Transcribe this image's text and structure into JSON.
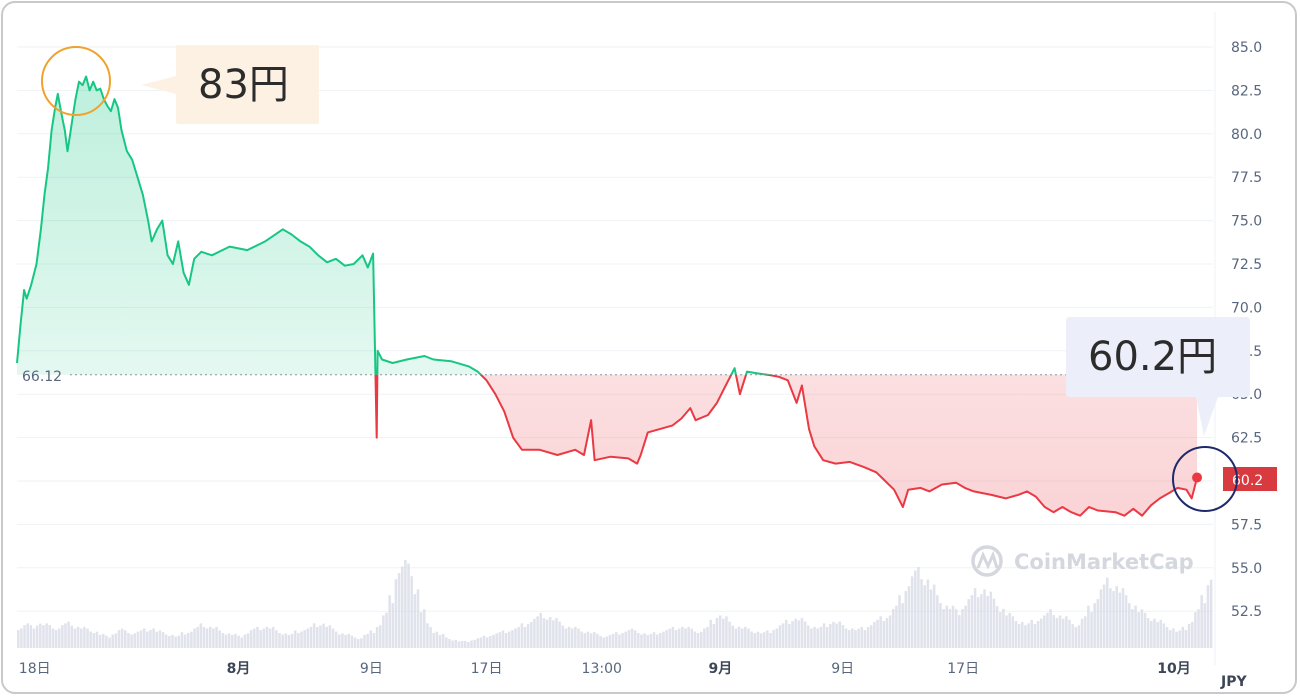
{
  "chart_data": {
    "type": "line",
    "unit_label": "JPY",
    "baseline": 66.12,
    "baseline_label": "66.12",
    "current_value": 60.2,
    "current_value_label": "60.2",
    "y_ticks": [
      "85.0",
      "82.5",
      "80.0",
      "77.5",
      "75.0",
      "72.5",
      "70.0",
      "67.5",
      "65.0",
      "62.5",
      "60.0",
      "57.5",
      "55.0",
      "52.5"
    ],
    "y_tick_values": [
      85.0,
      82.5,
      80.0,
      77.5,
      75.0,
      72.5,
      70.0,
      67.5,
      65.0,
      62.5,
      60.0,
      57.5,
      55.0,
      52.5
    ],
    "ylim": [
      50.5,
      86.5
    ],
    "x_ticks": [
      {
        "label": "18日",
        "bold": false
      },
      {
        "label": "8月",
        "bold": true
      },
      {
        "label": "9日",
        "bold": false
      },
      {
        "label": "17日",
        "bold": false
      },
      {
        "label": "13:00",
        "bold": false
      },
      {
        "label": "9月",
        "bold": true
      },
      {
        "label": "9日",
        "bold": false
      },
      {
        "label": "17日",
        "bold": false
      },
      {
        "label": "10月",
        "bold": true
      }
    ],
    "series": [
      {
        "values": [
          [
            0,
            66.8
          ],
          [
            0.2,
            69.0
          ],
          [
            0.4,
            71.0
          ],
          [
            0.55,
            70.5
          ],
          [
            0.8,
            71.3
          ],
          [
            1.1,
            72.5
          ],
          [
            1.35,
            74.5
          ],
          [
            1.55,
            76.5
          ],
          [
            1.75,
            78.0
          ],
          [
            1.95,
            80.2
          ],
          [
            2.15,
            81.5
          ],
          [
            2.3,
            82.3
          ],
          [
            2.5,
            81.2
          ],
          [
            2.7,
            80.2
          ],
          [
            2.85,
            79.0
          ],
          [
            3.0,
            80.0
          ],
          [
            3.15,
            81.0
          ],
          [
            3.3,
            82.0
          ],
          [
            3.5,
            83.0
          ],
          [
            3.7,
            82.8
          ],
          [
            3.9,
            83.3
          ],
          [
            4.1,
            82.5
          ],
          [
            4.3,
            83.0
          ],
          [
            4.5,
            82.5
          ],
          [
            4.7,
            82.6
          ],
          [
            4.9,
            82.0
          ],
          [
            5.1,
            81.6
          ],
          [
            5.3,
            81.3
          ],
          [
            5.5,
            82.0
          ],
          [
            5.7,
            81.5
          ],
          [
            5.9,
            80.2
          ],
          [
            6.2,
            79.0
          ],
          [
            6.5,
            78.5
          ],
          [
            6.8,
            77.5
          ],
          [
            7.1,
            76.5
          ],
          [
            7.4,
            75.0
          ],
          [
            7.6,
            73.8
          ],
          [
            7.9,
            74.5
          ],
          [
            8.2,
            75.0
          ],
          [
            8.5,
            73.0
          ],
          [
            8.8,
            72.5
          ],
          [
            9.1,
            73.8
          ],
          [
            9.4,
            72.0
          ],
          [
            9.7,
            71.3
          ],
          [
            10.0,
            72.8
          ],
          [
            10.4,
            73.2
          ],
          [
            11.0,
            73.0
          ],
          [
            12.0,
            73.5
          ],
          [
            13.0,
            73.3
          ],
          [
            14.0,
            73.8
          ],
          [
            15.0,
            74.5
          ],
          [
            15.5,
            74.2
          ],
          [
            16.0,
            73.8
          ],
          [
            16.5,
            73.5
          ],
          [
            17.0,
            73.0
          ],
          [
            17.5,
            72.6
          ],
          [
            18.0,
            72.8
          ],
          [
            18.5,
            72.4
          ],
          [
            19.0,
            72.5
          ],
          [
            19.5,
            73.0
          ],
          [
            19.8,
            72.3
          ],
          [
            20.1,
            73.1
          ],
          [
            20.3,
            62.5
          ],
          [
            20.35,
            67.5
          ],
          [
            20.6,
            67.0
          ],
          [
            21.2,
            66.8
          ],
          [
            22.0,
            67.0
          ],
          [
            23.0,
            67.2
          ],
          [
            23.5,
            67.0
          ],
          [
            24.5,
            66.9
          ],
          [
            25.5,
            66.6
          ],
          [
            26.0,
            66.3
          ],
          [
            26.5,
            65.8
          ],
          [
            27.0,
            65.0
          ],
          [
            27.5,
            64.0
          ],
          [
            28.0,
            62.5
          ],
          [
            28.5,
            61.8
          ],
          [
            29.5,
            61.8
          ],
          [
            30.5,
            61.5
          ],
          [
            31.5,
            61.8
          ],
          [
            32.0,
            61.5
          ],
          [
            32.4,
            63.5
          ],
          [
            32.6,
            61.2
          ],
          [
            33.5,
            61.4
          ],
          [
            34.5,
            61.3
          ],
          [
            35.0,
            61.0
          ],
          [
            35.2,
            61.5
          ],
          [
            35.6,
            62.8
          ],
          [
            36.3,
            63.0
          ],
          [
            37.0,
            63.2
          ],
          [
            37.5,
            63.6
          ],
          [
            38.0,
            64.2
          ],
          [
            38.3,
            63.5
          ],
          [
            39.0,
            63.8
          ],
          [
            39.5,
            64.5
          ],
          [
            40.0,
            65.5
          ],
          [
            40.5,
            66.5
          ],
          [
            40.8,
            65.0
          ],
          [
            41.2,
            66.3
          ],
          [
            41.8,
            66.2
          ],
          [
            42.5,
            66.1
          ],
          [
            43.0,
            66.0
          ],
          [
            43.5,
            65.8
          ],
          [
            44.0,
            64.5
          ],
          [
            44.3,
            65.5
          ],
          [
            44.7,
            63.0
          ],
          [
            45.0,
            62.0
          ],
          [
            45.5,
            61.2
          ],
          [
            46.2,
            61.0
          ],
          [
            47.0,
            61.1
          ],
          [
            47.8,
            60.8
          ],
          [
            48.5,
            60.5
          ],
          [
            49.0,
            60.0
          ],
          [
            49.5,
            59.5
          ],
          [
            50.0,
            58.5
          ],
          [
            50.3,
            59.5
          ],
          [
            51.0,
            59.6
          ],
          [
            51.5,
            59.4
          ],
          [
            52.2,
            59.8
          ],
          [
            53.0,
            59.9
          ],
          [
            53.5,
            59.6
          ],
          [
            54.0,
            59.4
          ],
          [
            55.0,
            59.2
          ],
          [
            55.8,
            59.0
          ],
          [
            56.5,
            59.2
          ],
          [
            57.0,
            59.4
          ],
          [
            57.5,
            59.1
          ],
          [
            58.0,
            58.5
          ],
          [
            58.5,
            58.2
          ],
          [
            59.0,
            58.5
          ],
          [
            59.5,
            58.2
          ],
          [
            60.0,
            58.0
          ],
          [
            60.5,
            58.5
          ],
          [
            61.0,
            58.3
          ],
          [
            62.0,
            58.2
          ],
          [
            62.5,
            58.0
          ],
          [
            63.0,
            58.4
          ],
          [
            63.5,
            58.0
          ],
          [
            64.0,
            58.6
          ],
          [
            64.5,
            59.0
          ],
          [
            65.0,
            59.3
          ],
          [
            65.5,
            59.6
          ],
          [
            66.0,
            59.5
          ],
          [
            66.3,
            59.0
          ],
          [
            66.6,
            60.2
          ]
        ]
      }
    ],
    "x_range": [
      0,
      67.5
    ],
    "x_tick_positions": [
      1.0,
      12.5,
      20.0,
      26.5,
      33.0,
      39.7,
      46.6,
      53.4,
      65.3
    ],
    "volume": [
      12,
      14,
      13,
      15,
      14,
      13,
      12,
      14,
      15,
      13,
      12,
      11,
      10,
      8,
      7,
      9,
      11,
      10,
      9,
      10,
      11,
      12,
      10,
      9,
      8,
      7,
      9,
      10,
      12,
      14,
      13,
      12,
      10,
      9,
      8,
      7,
      9,
      11,
      12,
      13,
      12,
      10,
      9,
      8,
      10,
      11,
      12,
      14,
      15,
      13,
      11,
      9,
      8,
      7,
      6,
      8,
      10,
      14,
      20,
      30,
      46,
      50,
      48,
      36,
      22,
      14,
      10,
      8,
      6,
      5,
      4,
      4,
      5,
      6,
      7,
      8,
      9,
      10,
      11,
      12,
      14,
      16,
      18,
      20,
      19,
      17,
      15,
      13,
      12,
      11,
      10,
      9,
      8,
      7,
      8,
      9,
      10,
      11,
      10,
      9,
      8,
      9,
      10,
      11,
      12,
      13,
      12,
      11,
      10,
      12,
      16,
      20,
      18,
      15,
      13,
      12,
      11,
      10,
      9,
      10,
      12,
      14,
      16,
      18,
      17,
      15,
      13,
      12,
      14,
      16,
      15,
      13,
      12,
      11,
      12,
      14,
      16,
      18,
      20,
      24,
      30,
      38,
      44,
      46,
      42,
      36,
      30,
      26,
      24,
      22,
      26,
      30,
      34,
      36,
      32,
      28,
      24,
      20,
      18,
      16,
      14,
      16,
      18,
      20,
      22,
      20,
      18,
      16,
      14,
      18,
      24,
      30,
      36,
      40,
      38,
      34,
      30,
      26,
      22,
      20,
      18,
      16,
      14,
      12,
      10,
      12,
      16,
      22,
      30,
      42
    ]
  },
  "callouts": {
    "high_label": "83円",
    "high_value": 83,
    "current_label": "60.2円",
    "current_value": 60.2
  },
  "watermark": {
    "text": "CoinMarketCap"
  },
  "colors": {
    "up": "#16c784",
    "down": "#ea3943",
    "current_badge": "#d93a3f",
    "high_circle": "#f0a22e",
    "current_circle": "#1f2a6b",
    "high_callout_bg": "#fdf1e4",
    "current_callout_bg": "#eceff9"
  }
}
